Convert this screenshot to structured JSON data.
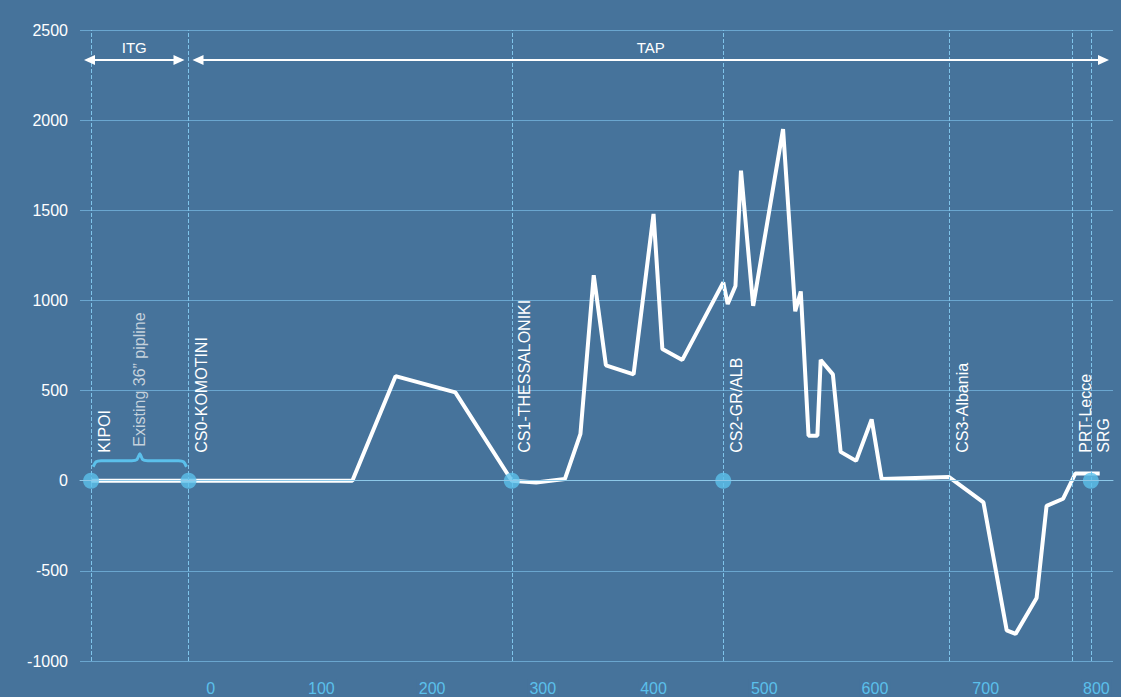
{
  "chart_data": {
    "type": "line",
    "x": [
      -108,
      -20,
      128,
      167,
      221,
      272,
      294,
      320,
      334,
      346,
      357,
      382,
      400,
      408,
      426,
      463,
      467,
      474,
      479,
      490,
      517,
      528,
      533,
      540,
      548,
      551,
      562,
      569,
      583,
      597,
      606,
      667,
      698,
      719,
      727,
      746,
      755,
      770,
      781,
      797,
      803
    ],
    "values": [
      0,
      0,
      0,
      580,
      490,
      0,
      -10,
      10,
      260,
      1140,
      640,
      590,
      1480,
      730,
      670,
      1100,
      980,
      1080,
      1720,
      970,
      1950,
      940,
      1050,
      250,
      250,
      670,
      590,
      160,
      110,
      340,
      10,
      20,
      -120,
      -830,
      -850,
      -650,
      -140,
      -100,
      40,
      40,
      40
    ],
    "color": "#ffffff",
    "xlim": [
      -118,
      815
    ],
    "ylim": [
      -1000,
      2500
    ],
    "xticks": [
      0,
      100,
      200,
      300,
      400,
      500,
      600,
      700,
      800
    ],
    "yticks": [
      -1000,
      -500,
      0,
      500,
      1000,
      1500,
      2000,
      2500
    ],
    "grid": true,
    "sections": [
      {
        "label": "ITG",
        "from": -118,
        "to": -20
      },
      {
        "label": "TAP",
        "from": -20,
        "to": 815
      }
    ],
    "stations": [
      {
        "label": "KIPOI",
        "x": -108
      },
      {
        "label": "CS0-KOMOTINI",
        "x": -20
      },
      {
        "label": "CS1-THESSALONIKI",
        "x": 272
      },
      {
        "label": "CS2-GR/ALB",
        "x": 463
      },
      {
        "label": "CS3-Albania",
        "x": 667
      },
      {
        "label": "PRT-Lecce",
        "x": 778
      },
      {
        "label": "SRG",
        "x": 795
      }
    ],
    "station_dots": [
      -108,
      -20,
      272,
      463,
      795
    ],
    "note": {
      "label": "Existing 36” pipline",
      "from": -108,
      "to": -20
    }
  }
}
